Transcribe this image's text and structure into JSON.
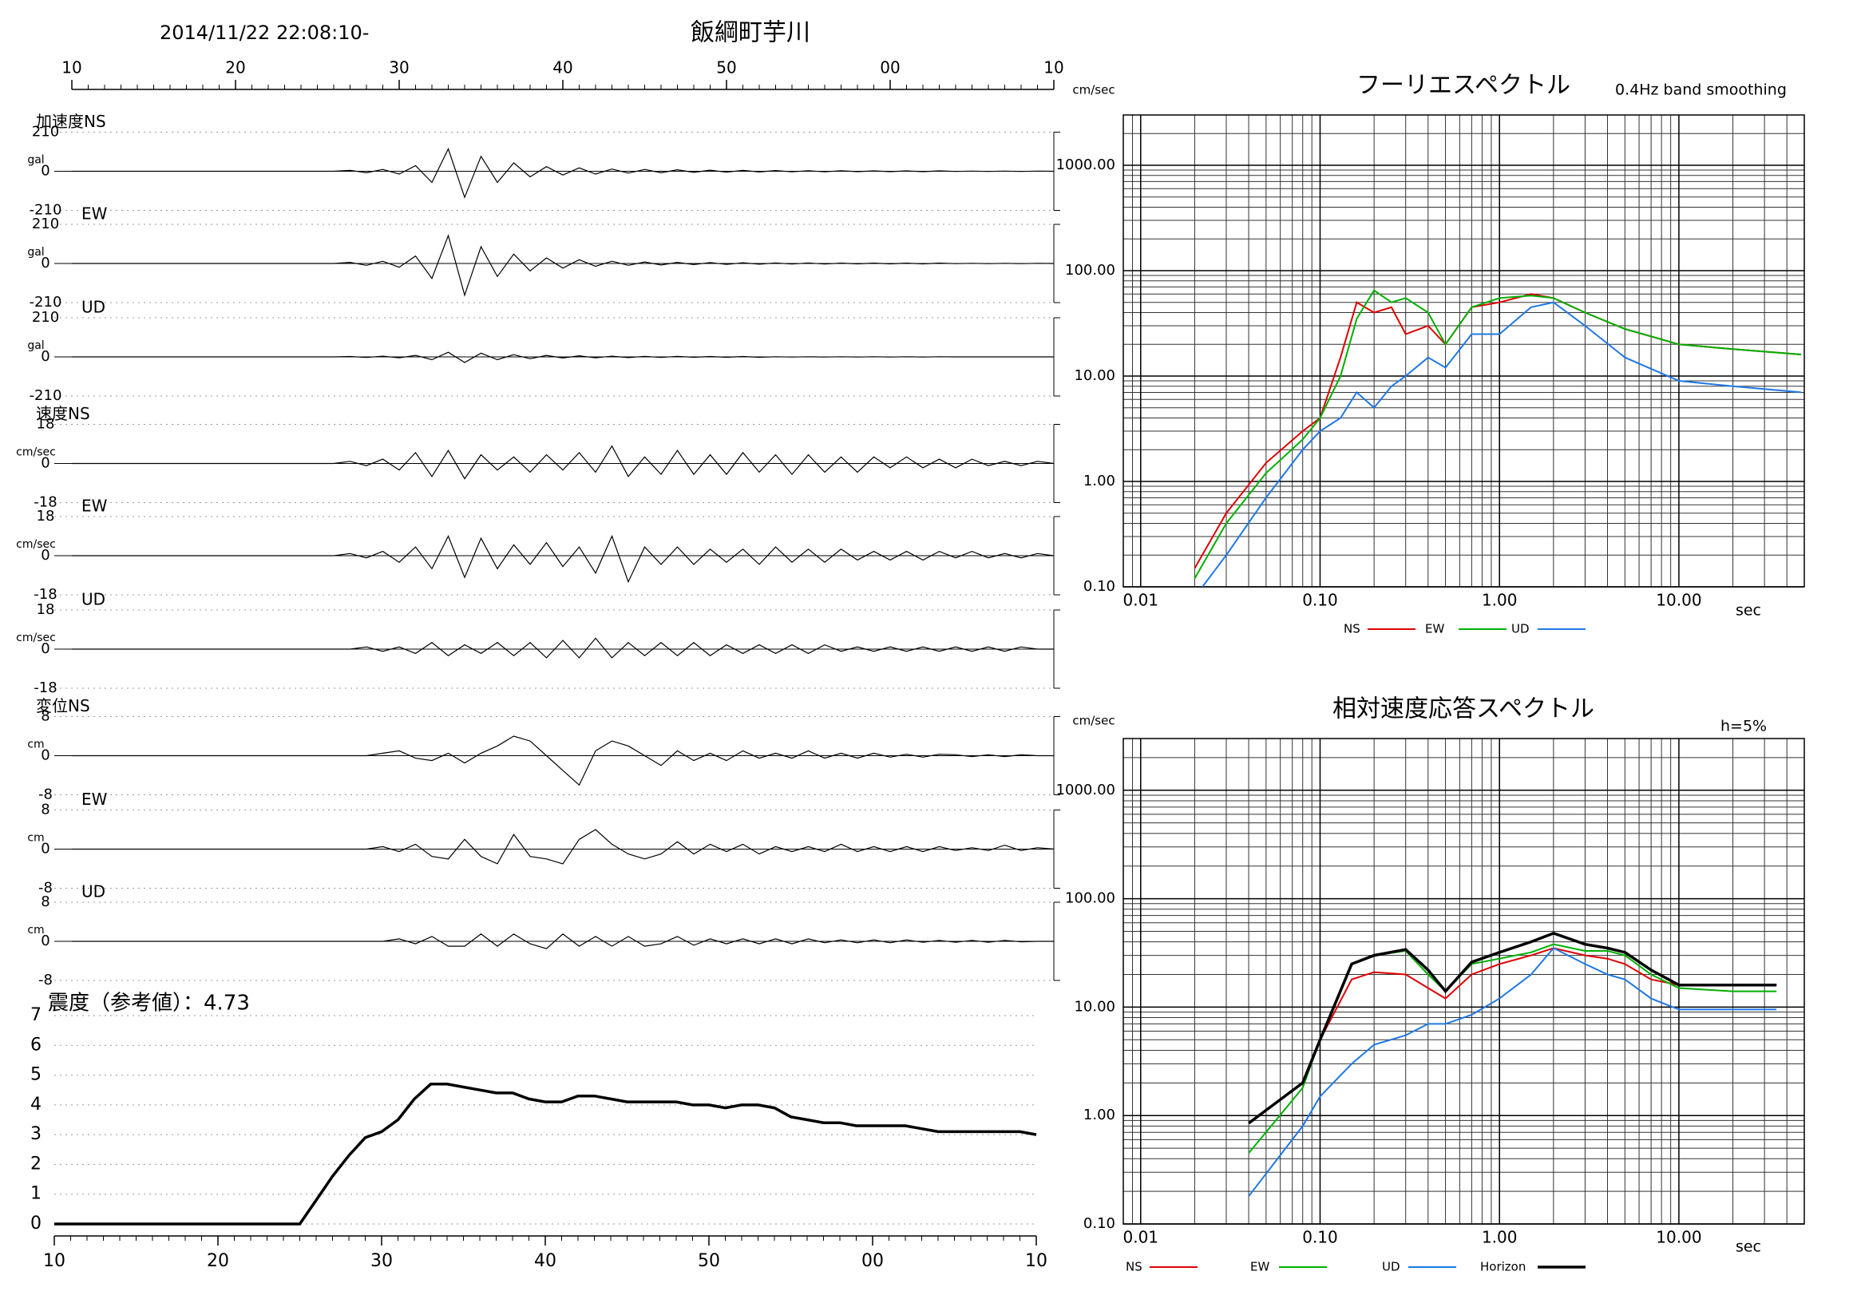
{
  "header": {
    "datetime": "2014/11/22 22:08:10-",
    "station": "飯綱町芋川"
  },
  "chart_data": [
    {
      "type": "waveform",
      "x": [
        10,
        11,
        12,
        13,
        14,
        15,
        16,
        17,
        18,
        19,
        20,
        21,
        22,
        23,
        24,
        25,
        26,
        27,
        28,
        29,
        30,
        31,
        32,
        33,
        34,
        35,
        36,
        37,
        38,
        39,
        40,
        41,
        42,
        43,
        44,
        45,
        46,
        47,
        48,
        49,
        50,
        51,
        52,
        53,
        54,
        55,
        56,
        57,
        58,
        59,
        60,
        61,
        62,
        63,
        64,
        65,
        66,
        67,
        68,
        69,
        70
      ],
      "xlim": [
        10,
        70
      ],
      "xticks": [
        10,
        20,
        30,
        40,
        50,
        {
          "value": 60,
          "label": "00"
        },
        {
          "value": 70,
          "label": "10"
        }
      ],
      "series": [
        {
          "name": "加速度NS",
          "unit": "gal",
          "ylim": [
            -210,
            210
          ],
          "yticks": [
            -210,
            0,
            210
          ],
          "values": [
            0,
            0,
            0,
            0,
            0,
            0,
            0,
            0,
            0,
            0,
            0,
            0,
            0,
            0,
            0,
            0,
            0,
            5,
            -8,
            10,
            -15,
            30,
            -60,
            120,
            -140,
            80,
            -60,
            45,
            -30,
            25,
            -20,
            18,
            -15,
            12,
            -10,
            10,
            -8,
            8,
            -6,
            6,
            -5,
            5,
            -4,
            4,
            -3,
            3,
            -3,
            3,
            -2,
            2,
            -2,
            2,
            -2,
            2,
            -1,
            1,
            -1,
            1,
            -1,
            1,
            0
          ]
        },
        {
          "name": "EW",
          "unit": "gal",
          "ylim": [
            -210,
            210
          ],
          "yticks": [
            -210,
            0,
            210
          ],
          "values": [
            0,
            0,
            0,
            0,
            0,
            0,
            0,
            0,
            0,
            0,
            0,
            0,
            0,
            0,
            0,
            0,
            0,
            6,
            -10,
            12,
            -20,
            40,
            -80,
            150,
            -170,
            90,
            -70,
            50,
            -40,
            30,
            -25,
            20,
            -15,
            12,
            -10,
            8,
            -8,
            6,
            -6,
            5,
            -5,
            4,
            -4,
            3,
            -3,
            3,
            -3,
            2,
            -2,
            2,
            -2,
            2,
            -2,
            2,
            -1,
            1,
            -1,
            1,
            -1,
            1,
            0
          ]
        },
        {
          "name": "UD",
          "unit": "gal",
          "ylim": [
            -210,
            210
          ],
          "yticks": [
            -210,
            0,
            210
          ],
          "values": [
            0,
            0,
            0,
            0,
            0,
            0,
            0,
            0,
            0,
            0,
            0,
            0,
            0,
            0,
            0,
            0,
            0,
            2,
            -3,
            4,
            -5,
            8,
            -15,
            25,
            -30,
            20,
            -15,
            12,
            -10,
            8,
            -6,
            6,
            -5,
            4,
            -4,
            3,
            -3,
            3,
            -2,
            2,
            -2,
            2,
            -2,
            1,
            -1,
            1,
            -1,
            1,
            -1,
            1,
            -1,
            1,
            -1,
            1,
            0,
            0,
            0,
            0,
            0,
            0,
            0
          ]
        },
        {
          "name": "速度NS",
          "unit": "cm/sec",
          "ylim": [
            -18,
            18
          ],
          "yticks": [
            -18,
            0,
            18
          ],
          "values": [
            0,
            0,
            0,
            0,
            0,
            0,
            0,
            0,
            0,
            0,
            0,
            0,
            0,
            0,
            0,
            0,
            0,
            1,
            -1,
            2,
            -3,
            5,
            -6,
            6,
            -7,
            4,
            -3,
            3,
            -4,
            4,
            -3,
            5,
            -4,
            8,
            -6,
            3,
            -5,
            6,
            -5,
            4,
            -5,
            5,
            -4,
            4,
            -5,
            4,
            -4,
            3,
            -4,
            3,
            -2,
            3,
            -2,
            2,
            -2,
            2,
            -1,
            1,
            -1,
            1,
            0
          ]
        },
        {
          "name": "EW",
          "unit": "cm/sec",
          "ylim": [
            -18,
            18
          ],
          "yticks": [
            -18,
            0,
            18
          ],
          "values": [
            0,
            0,
            0,
            0,
            0,
            0,
            0,
            0,
            0,
            0,
            0,
            0,
            0,
            0,
            0,
            0,
            0,
            1,
            -1,
            2,
            -3,
            4,
            -6,
            9,
            -10,
            8,
            -6,
            5,
            -4,
            6,
            -5,
            4,
            -8,
            9,
            -12,
            4,
            -4,
            4,
            -4,
            3,
            -3,
            3,
            -4,
            4,
            -3,
            3,
            -3,
            3,
            -2,
            2,
            -2,
            2,
            -2,
            2,
            -1,
            2,
            -1,
            1,
            -1,
            1,
            0
          ]
        },
        {
          "name": "UD",
          "unit": "cm/sec",
          "ylim": [
            -18,
            18
          ],
          "yticks": [
            -18,
            0,
            18
          ],
          "values": [
            0,
            0,
            0,
            0,
            0,
            0,
            0,
            0,
            0,
            0,
            0,
            0,
            0,
            0,
            0,
            0,
            0,
            0,
            1,
            -1,
            1,
            -2,
            3,
            -3,
            2,
            -2,
            3,
            -3,
            3,
            -4,
            4,
            -4,
            5,
            -4,
            3,
            -3,
            3,
            -3,
            3,
            -3,
            2,
            -2,
            2,
            -2,
            2,
            -2,
            2,
            -1,
            1,
            -1,
            1,
            -1,
            1,
            -1,
            1,
            -1,
            1,
            -1,
            1,
            0,
            0
          ]
        },
        {
          "name": "変位NS",
          "unit": "cm",
          "ylim": [
            -8,
            8
          ],
          "yticks": [
            -8,
            0,
            8
          ],
          "values": [
            0,
            0,
            0,
            0,
            0,
            0,
            0,
            0,
            0,
            0,
            0,
            0,
            0,
            0,
            0,
            0,
            0,
            0,
            0,
            0.5,
            1,
            -0.5,
            -1,
            0.5,
            -1.5,
            0.5,
            2,
            4,
            3,
            0,
            -3,
            -6,
            1,
            3,
            2,
            0,
            -2,
            1,
            -1,
            0.5,
            -1,
            1,
            -0.5,
            0.5,
            -0.5,
            1,
            -0.5,
            0.5,
            -0.5,
            0.5,
            -0.3,
            0.3,
            -0.3,
            0.3,
            0.2,
            -0.2,
            0.2,
            -0.2,
            0.2,
            0,
            0
          ]
        },
        {
          "name": "EW",
          "unit": "cm",
          "ylim": [
            -8,
            8
          ],
          "yticks": [
            -8,
            0,
            8
          ],
          "values": [
            0,
            0,
            0,
            0,
            0,
            0,
            0,
            0,
            0,
            0,
            0,
            0,
            0,
            0,
            0,
            0,
            0,
            0,
            0,
            0.5,
            -0.5,
            1,
            -1.5,
            -2,
            2,
            -1.5,
            -3,
            3,
            -1.5,
            -2,
            -3,
            2,
            4,
            1,
            -1,
            -2,
            -1,
            1.5,
            -1,
            1,
            -0.5,
            1,
            -1,
            0.5,
            -0.5,
            0.5,
            -0.5,
            1,
            -0.5,
            0.5,
            -0.5,
            0.5,
            -0.5,
            0.5,
            -0.3,
            0.3,
            -0.3,
            0.8,
            -0.3,
            0.3,
            0
          ]
        },
        {
          "name": "UD",
          "unit": "cm",
          "ylim": [
            -8,
            8
          ],
          "yticks": [
            -8,
            0,
            8
          ],
          "values": [
            0,
            0,
            0,
            0,
            0,
            0,
            0,
            0,
            0,
            0,
            0,
            0,
            0,
            0,
            0,
            0,
            0,
            0,
            0,
            0,
            0.5,
            -0.5,
            1,
            -1,
            -1,
            1.5,
            -1,
            1.5,
            -0.5,
            -1.5,
            1.5,
            -1,
            1,
            -1,
            1,
            -1,
            -0.5,
            1,
            -0.8,
            0.5,
            -0.5,
            0.5,
            -0.5,
            0.5,
            -0.5,
            0.5,
            -0.3,
            0.3,
            -0.3,
            0.3,
            -0.3,
            0.3,
            -0.2,
            0.2,
            -0.2,
            0.2,
            -0.2,
            0.2,
            -0.1,
            0,
            0
          ]
        }
      ]
    },
    {
      "type": "line",
      "title": "震度（参考値）：4.73",
      "color": "#000000",
      "grid": true,
      "x": [
        10,
        11,
        12,
        13,
        14,
        15,
        16,
        17,
        18,
        19,
        20,
        21,
        22,
        23,
        24,
        25,
        26,
        27,
        28,
        29,
        30,
        31,
        32,
        33,
        34,
        35,
        36,
        37,
        38,
        39,
        40,
        41,
        42,
        43,
        44,
        45,
        46,
        47,
        48,
        49,
        50,
        51,
        52,
        53,
        54,
        55,
        56,
        57,
        58,
        59,
        60,
        61,
        62,
        63,
        64,
        65,
        66,
        67,
        68,
        69,
        70
      ],
      "values": [
        0,
        0,
        0,
        0,
        0,
        0,
        0,
        0,
        0,
        0,
        0,
        0,
        0,
        0,
        0,
        0,
        0.8,
        1.6,
        2.3,
        2.9,
        3.1,
        3.5,
        4.2,
        4.7,
        4.7,
        4.6,
        4.5,
        4.4,
        4.4,
        4.2,
        4.1,
        4.1,
        4.3,
        4.3,
        4.2,
        4.1,
        4.1,
        4.1,
        4.1,
        4.0,
        4.0,
        3.9,
        4.0,
        4.0,
        3.9,
        3.6,
        3.5,
        3.4,
        3.4,
        3.3,
        3.3,
        3.3,
        3.3,
        3.2,
        3.1,
        3.1,
        3.1,
        3.1,
        3.1,
        3.1,
        3.0
      ],
      "xlim": [
        10,
        70
      ],
      "xticks": [
        10,
        20,
        30,
        40,
        50,
        {
          "value": 60,
          "label": "00"
        },
        {
          "value": 70,
          "label": "10"
        }
      ],
      "ylim": [
        0,
        7
      ],
      "yticks": [
        0,
        1,
        2,
        3,
        4,
        5,
        6,
        7
      ]
    },
    {
      "type": "line",
      "title": "フーリエスペクトル",
      "subtitle": "0.4Hz band smoothing",
      "ylabel": "cm/sec",
      "xlabel": "sec",
      "xscale": "log",
      "yscale": "log",
      "grid": true,
      "x": [
        0.02,
        0.03,
        0.05,
        0.08,
        0.1,
        0.13,
        0.16,
        0.2,
        0.25,
        0.3,
        0.4,
        0.5,
        0.7,
        1,
        1.5,
        2,
        3,
        5,
        10,
        20,
        48
      ],
      "xlim": [
        0.008,
        50
      ],
      "ylim": [
        0.1,
        3000
      ],
      "xticks": [
        {
          "value": 0.01,
          "label": "0.01"
        },
        {
          "value": 0.1,
          "label": "0.10"
        },
        {
          "value": 1,
          "label": "1.00"
        },
        {
          "value": 10,
          "label": "10.00"
        }
      ],
      "yticks": [
        {
          "value": 0.1,
          "label": "0.10"
        },
        {
          "value": 1,
          "label": "1.00"
        },
        {
          "value": 10,
          "label": "10.00"
        },
        {
          "value": 100,
          "label": "100.00"
        },
        {
          "value": 1000,
          "label": "1000.00"
        }
      ],
      "series": [
        {
          "name": "NS",
          "color": "#e00000",
          "values": [
            0.15,
            0.5,
            1.5,
            3,
            4,
            15,
            50,
            40,
            45,
            25,
            30,
            20,
            45,
            50,
            60,
            55,
            40,
            28,
            20,
            18,
            16
          ]
        },
        {
          "name": "EW",
          "color": "#00b000",
          "values": [
            0.12,
            0.4,
            1.2,
            2.5,
            4,
            10,
            35,
            65,
            50,
            55,
            40,
            20,
            45,
            55,
            58,
            55,
            40,
            28,
            20,
            18,
            16
          ]
        },
        {
          "name": "UD",
          "color": "#1e78e6",
          "values": [
            0.08,
            0.2,
            0.7,
            2,
            3,
            4,
            7,
            5,
            8,
            10,
            15,
            12,
            25,
            25,
            45,
            50,
            30,
            15,
            9,
            8,
            7
          ]
        }
      ]
    },
    {
      "type": "line",
      "title": "相対速度応答スペクトル",
      "subtitle": "h=5%",
      "ylabel": "cm/sec",
      "xlabel": "sec",
      "xscale": "log",
      "yscale": "log",
      "grid": true,
      "x": [
        0.04,
        0.08,
        0.1,
        0.15,
        0.2,
        0.3,
        0.4,
        0.5,
        0.7,
        1,
        1.5,
        2,
        3,
        4,
        5,
        7,
        10,
        20,
        35
      ],
      "xlim": [
        0.008,
        50
      ],
      "ylim": [
        0.1,
        3000
      ],
      "xticks": [
        {
          "value": 0.01,
          "label": "0.01"
        },
        {
          "value": 0.1,
          "label": "0.10"
        },
        {
          "value": 1,
          "label": "1.00"
        },
        {
          "value": 10,
          "label": "10.00"
        }
      ],
      "yticks": [
        {
          "value": 0.1,
          "label": "0.10"
        },
        {
          "value": 1,
          "label": "1.00"
        },
        {
          "value": 10,
          "label": "10.00"
        },
        {
          "value": 100,
          "label": "100.00"
        },
        {
          "value": 1000,
          "label": "1000.00"
        }
      ],
      "series": [
        {
          "name": "NS",
          "color": "#e00000",
          "values": [
            0.85,
            2,
            5,
            18,
            21,
            20,
            15,
            12,
            20,
            25,
            30,
            35,
            30,
            28,
            25,
            18,
            16,
            16,
            16
          ]
        },
        {
          "name": "EW",
          "color": "#00b000",
          "values": [
            0.45,
            1.8,
            5,
            25,
            30,
            33,
            20,
            14,
            25,
            28,
            32,
            38,
            33,
            33,
            30,
            20,
            15,
            14,
            14
          ]
        },
        {
          "name": "UD",
          "color": "#1e78e6",
          "values": [
            0.18,
            0.8,
            1.5,
            3,
            4.5,
            5.5,
            7,
            7,
            8.5,
            12,
            20,
            35,
            25,
            20,
            18,
            12,
            9.5,
            9.5,
            9.5
          ]
        },
        {
          "name": "Horizon",
          "color": "#000000",
          "values": [
            0.85,
            2,
            5,
            25,
            30,
            34,
            22,
            14,
            26,
            32,
            40,
            48,
            38,
            35,
            32,
            22,
            16,
            16,
            16
          ]
        }
      ]
    }
  ]
}
